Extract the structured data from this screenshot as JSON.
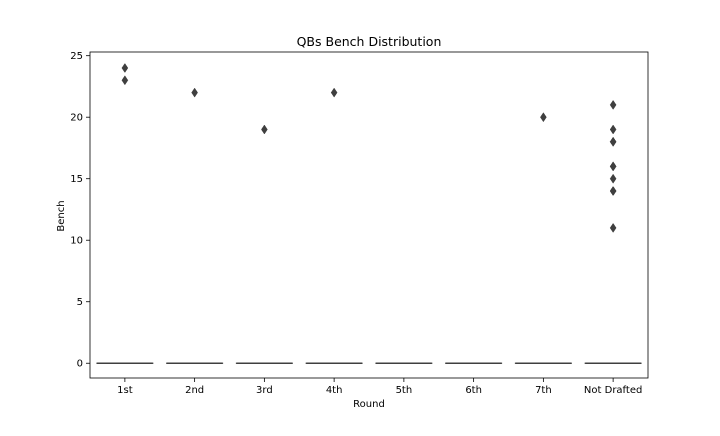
{
  "chart_data": {
    "type": "box",
    "title": "QBs Bench Distribution",
    "xlabel": "Round",
    "ylabel": "Bench",
    "categories": [
      "1st",
      "2nd",
      "3rd",
      "4th",
      "5th",
      "6th",
      "7th",
      "Not Drafted"
    ],
    "ylim": [
      -1.2,
      25.3
    ],
    "yticks": [
      0,
      5,
      10,
      15,
      20,
      25
    ],
    "boxes": [
      {
        "category": "1st",
        "q1": 0,
        "median": 0,
        "q3": 0,
        "whisker_low": 0,
        "whisker_high": 0,
        "outliers": [
          23,
          24
        ]
      },
      {
        "category": "2nd",
        "q1": 0,
        "median": 0,
        "q3": 0,
        "whisker_low": 0,
        "whisker_high": 0,
        "outliers": [
          22
        ]
      },
      {
        "category": "3rd",
        "q1": 0,
        "median": 0,
        "q3": 0,
        "whisker_low": 0,
        "whisker_high": 0,
        "outliers": [
          19
        ]
      },
      {
        "category": "4th",
        "q1": 0,
        "median": 0,
        "q3": 0,
        "whisker_low": 0,
        "whisker_high": 0,
        "outliers": [
          22
        ]
      },
      {
        "category": "5th",
        "q1": 0,
        "median": 0,
        "q3": 0,
        "whisker_low": 0,
        "whisker_high": 0,
        "outliers": []
      },
      {
        "category": "6th",
        "q1": 0,
        "median": 0,
        "q3": 0,
        "whisker_low": 0,
        "whisker_high": 0,
        "outliers": []
      },
      {
        "category": "7th",
        "q1": 0,
        "median": 0,
        "q3": 0,
        "whisker_low": 0,
        "whisker_high": 0,
        "outliers": [
          20
        ]
      },
      {
        "category": "Not Drafted",
        "q1": 0,
        "median": 0,
        "q3": 0,
        "whisker_low": 0,
        "whisker_high": 0,
        "outliers": [
          11,
          14,
          14,
          15,
          16,
          16,
          18,
          18,
          19,
          21
        ]
      }
    ],
    "grid": false,
    "colors": {
      "box_edge": "#3f3f3f",
      "outlier": "#3f3f3f",
      "axes": "#000000"
    }
  }
}
